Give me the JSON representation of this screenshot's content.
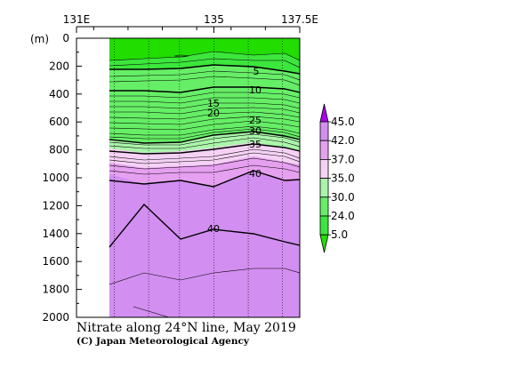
{
  "chart_data": {
    "type": "heatmap",
    "title": "Nitrate along 24°N line, May 2019",
    "credit": "(C) Japan Meteorological Agency",
    "ylabel": "(m)",
    "x_tick_labels": [
      "131E",
      "135",
      "137.5E"
    ],
    "x_ticks": [
      131,
      135,
      137.5
    ],
    "xlim": [
      131,
      137.5
    ],
    "y_ticks": [
      0,
      200,
      400,
      600,
      800,
      1000,
      1200,
      1400,
      1600,
      1800,
      2000
    ],
    "ylim": [
      0,
      2000
    ],
    "y_inverted": true,
    "data_start_lon": 132.1,
    "station_lons": [
      132.1,
      133.1,
      134.0,
      135.0,
      136.0,
      137.0
    ],
    "contour_labels": [
      "5",
      "10",
      "15",
      "20",
      "25",
      "30",
      "35",
      "40",
      "40"
    ],
    "color_scale": {
      "labels": [
        "45.0",
        "42.0",
        "37.0",
        "35.0",
        "30.0",
        "24.0",
        "5.0"
      ],
      "bands": [
        {
          "range": "<5.0",
          "color": "#22dd00"
        },
        {
          "range": "5.0-24.0",
          "color": "#3ce63c"
        },
        {
          "range": "24.0-30.0",
          "color": "#66ee66"
        },
        {
          "range": "30.0-35.0",
          "color": "#aaf5aa"
        },
        {
          "range": "35.0-37.0",
          "color": "#f5d2f5"
        },
        {
          "range": "37.0-42.0",
          "color": "#e6a0f0"
        },
        {
          "range": "42.0-45.0",
          "color": "#d28ef0"
        },
        {
          "range": ">45.0",
          "color": "#aa00ee"
        }
      ]
    }
  }
}
